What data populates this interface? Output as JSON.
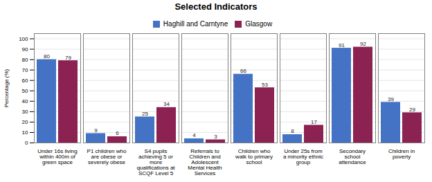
{
  "chart_data": {
    "type": "bar",
    "title": "Selected Indicators",
    "ylabel": "Percentage (%)",
    "categories": [
      "Under 16s living\nwithin 400m of\ngreen space",
      "P1 children who\nare obese or\nseverely obese",
      "S4 pupils\nachieving 5 or\nmore\nqualifications at\nSCQF Level 5",
      "Referrals to\nChildren and\nAdolescent\nMental Health\nServices",
      "Children who\nwalk to primary\nschool",
      "Under 25s from\na minority ethnic\ngroup",
      "Secondary\nschool\nattendance",
      "Children in\npoverty"
    ],
    "series": [
      {
        "name": "Haghill and Carntyne",
        "color": "#4472C4",
        "values": [
          80,
          9,
          25,
          4,
          66,
          8,
          91,
          39
        ]
      },
      {
        "name": "Glasgow",
        "color": "#8B2252",
        "values": [
          79,
          6,
          34,
          3,
          53,
          17,
          92,
          29
        ]
      }
    ],
    "ylim": [
      0,
      105
    ],
    "yticks": [
      0,
      10,
      20,
      30,
      40,
      50,
      60,
      70,
      80,
      90,
      100
    ],
    "grid": true,
    "data_labels": true,
    "legend": "top"
  }
}
